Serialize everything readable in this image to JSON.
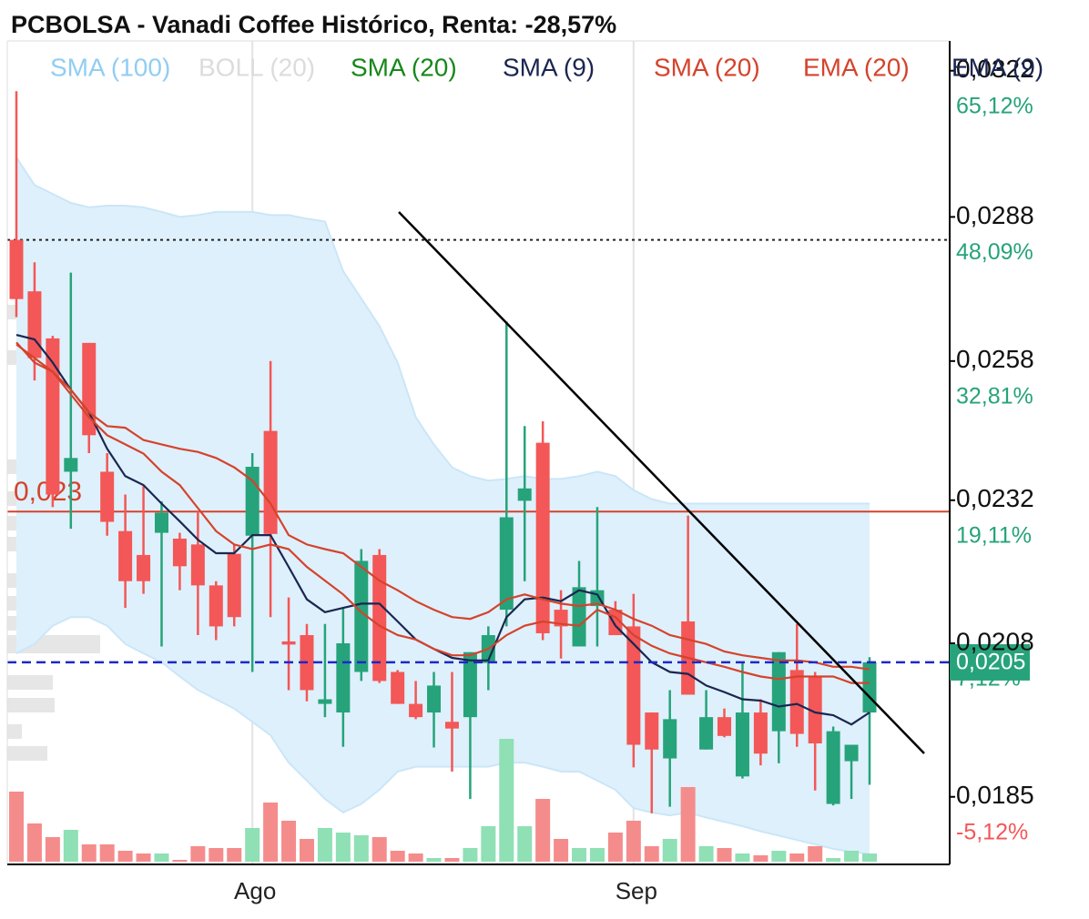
{
  "chart_data": {
    "type": "candlestick",
    "title": "PCBOLSA - Vanadi Coffee Histórico, Renta: -28,57%",
    "log_scale": true,
    "ylim": [
      0.01757,
      0.03294
    ],
    "yticks": [
      {
        "value": 0.0322,
        "label": "0,0322",
        "change": "65,12%"
      },
      {
        "value": 0.0288,
        "label": "0,0288",
        "change": "48,09%"
      },
      {
        "value": 0.0258,
        "label": "0,0258",
        "change": "32,81%"
      },
      {
        "value": 0.0232,
        "label": "0,0232",
        "change": "19,11%"
      },
      {
        "value": 0.0208,
        "label": "0,0208",
        "change": "7,12%"
      },
      {
        "value": 0.0185,
        "label": "0,0185",
        "change": "-5,12%"
      }
    ],
    "categories": [
      null,
      null,
      null,
      null,
      null,
      null,
      null,
      null,
      null,
      null,
      null,
      null,
      null,
      "Ago",
      null,
      null,
      null,
      null,
      null,
      null,
      null,
      null,
      null,
      null,
      null,
      null,
      null,
      null,
      null,
      null,
      null,
      null,
      null,
      null,
      "Sep",
      null,
      null,
      null,
      null,
      null,
      null,
      null,
      null,
      null,
      null,
      null,
      null,
      null
    ],
    "x_grid": true,
    "up_color": "#26a37a",
    "down_color": "#f35757",
    "volume_up_color": "#8fe0b5",
    "volume_down_color": "#f58c8c",
    "open": [
      0.0283,
      0.02721,
      0.02625,
      0.02371,
      0.02616,
      0.02371,
      0.02266,
      0.02225,
      0.02263,
      0.02253,
      0.02243,
      0.02174,
      0.02227,
      0.02258,
      0.02446,
      0.02083,
      0.02093,
      0.01986,
      0.01973,
      0.02035,
      0.02225,
      0.02035,
      0.01986,
      0.01973,
      0.01959,
      0.01966,
      0.02049,
      0.02134,
      0.02319,
      0.02424,
      0.02134,
      0.02075,
      0.0214,
      0.02134,
      0.02107,
      0.01973,
      0.01905,
      0.02115,
      0.01918,
      0.01966,
      0.01879,
      0.01973,
      0.01945,
      0.02038,
      0.02028,
      0.0184,
      0.01901,
      0.01973
    ],
    "high": [
      0.0317,
      0.02782,
      0.0263,
      0.0276,
      0.02616,
      0.02405,
      0.0233,
      0.02345,
      0.02318,
      0.02263,
      0.02302,
      0.02181,
      0.02243,
      0.02405,
      0.0258,
      0.02154,
      0.02111,
      0.02111,
      0.02137,
      0.02235,
      0.02235,
      0.02038,
      0.02021,
      0.02035,
      0.02035,
      0.02066,
      0.02107,
      0.02659,
      0.02455,
      0.02464,
      0.02166,
      0.02215,
      0.02308,
      0.02148,
      0.0216,
      0.01973,
      0.02007,
      0.02293,
      0.02007,
      0.01979,
      0.02049,
      0.01993,
      0.02066,
      0.02111,
      0.02035,
      0.01952,
      0.01925,
      0.02058
    ],
    "low": [
      0.02668,
      0.02542,
      0.02308,
      0.0227,
      0.02405,
      0.02258,
      0.02137,
      0.0216,
      0.02075,
      0.02166,
      0.02093,
      0.02085,
      0.02107,
      0.02035,
      0.02122,
      0.02007,
      0.0199,
      0.01966,
      0.01922,
      0.02021,
      0.02018,
      0.01986,
      0.01963,
      0.01921,
      0.01886,
      0.01847,
      0.02007,
      0.02107,
      0.02181,
      0.02085,
      0.02056,
      0.02075,
      0.02075,
      0.02093,
      0.01892,
      0.01827,
      0.01836,
      0.02,
      0.01918,
      0.01936,
      0.01876,
      0.01895,
      0.01898,
      0.01922,
      0.01859,
      0.01838,
      0.01847,
      0.01867
    ],
    "close": [
      0.02705,
      0.02586,
      0.0233,
      0.02396,
      0.02438,
      0.02282,
      0.02181,
      0.02181,
      0.02298,
      0.02206,
      0.02174,
      0.02107,
      0.02122,
      0.0238,
      0.02261,
      0.02078,
      0.02007,
      0.01993,
      0.0208,
      0.02215,
      0.02021,
      0.01986,
      0.01966,
      0.02014,
      0.01949,
      0.02066,
      0.02093,
      0.0229,
      0.02341,
      0.02096,
      0.02107,
      0.02171,
      0.02166,
      0.02093,
      0.01925,
      0.01918,
      0.01963,
      0.02,
      0.01966,
      0.01938,
      0.01973,
      0.01912,
      0.02066,
      0.01941,
      0.01927,
      0.01945,
      0.01925,
      0.0205
    ],
    "vlim": [
      0,
      905
    ],
    "volume": [
      77,
      42,
      27,
      35,
      19,
      19,
      12,
      9,
      9,
      2,
      17,
      15,
      15,
      37,
      65,
      45,
      25,
      37,
      32,
      29,
      27,
      12,
      9,
      4,
      4,
      15,
      39,
      135,
      39,
      69,
      25,
      15,
      15,
      32,
      45,
      17,
      25,
      82,
      17,
      15,
      9,
      7,
      12,
      9,
      17,
      4,
      12,
      9
    ],
    "legend": [
      {
        "name": "SMA (100)",
        "color": "#92cdf2"
      },
      {
        "name": "BOLL (20)",
        "color": "#dcdcdc"
      },
      {
        "name": "SMA (20)",
        "color": "#17871b"
      },
      {
        "name": "SMA (9)",
        "color": "#1b2651"
      },
      {
        "name": "SMA (20)",
        "color": "#d5432c"
      },
      {
        "name": "EMA (20)",
        "color": "#d5432c"
      },
      {
        "name": "EMA (9)",
        "color": "#1b2651"
      }
    ],
    "band": {
      "legend_item": 1,
      "fill": "#def0fb",
      "line_color": "#cbe6f8",
      "upper": [
        0.03014,
        0.02951,
        0.02931,
        0.02911,
        0.02901,
        0.02905,
        0.02905,
        0.02901,
        0.02891,
        0.0288,
        0.02884,
        0.02891,
        0.02891,
        0.02891,
        0.02884,
        0.02884,
        0.02876,
        0.0287,
        0.02763,
        0.02706,
        0.0265,
        0.02577,
        0.02472,
        0.02421,
        0.02379,
        0.02363,
        0.02355,
        0.02358,
        0.02363,
        0.02358,
        0.02358,
        0.02363,
        0.02371,
        0.02363,
        0.02338,
        0.02322,
        0.02314,
        0.02314,
        0.02314,
        0.02314,
        0.02314,
        0.02314,
        0.02314,
        0.02314,
        0.02314,
        0.02314,
        0.02314,
        0.02314
      ],
      "lower": [
        0.02064,
        0.02079,
        0.02108,
        0.02122,
        0.02122,
        0.02108,
        0.02079,
        0.02064,
        0.0205,
        0.02028,
        0.02007,
        0.01993,
        0.01979,
        0.01959,
        0.01939,
        0.01899,
        0.01873,
        0.01847,
        0.01828,
        0.0184,
        0.0186,
        0.01886,
        0.01893,
        0.01893,
        0.01893,
        0.01893,
        0.01893,
        0.01899,
        0.01899,
        0.01893,
        0.01886,
        0.01886,
        0.01873,
        0.0186,
        0.01834,
        0.01828,
        0.01824,
        0.01828,
        0.01821,
        0.01815,
        0.01809,
        0.01802,
        0.01796,
        0.0179,
        0.01784,
        0.01778,
        0.01774,
        0.01771
      ]
    },
    "overlays": [
      {
        "legend_item": 3,
        "values": [
          0.02632,
          0.02623,
          0.02577,
          0.02524,
          0.02481,
          0.02413,
          0.02363,
          0.02347,
          0.02314,
          0.02283,
          0.02251,
          0.02228,
          0.02228,
          0.02259,
          0.02259,
          0.02205,
          0.02151,
          0.0213,
          0.02137,
          0.02144,
          0.02144,
          0.02115,
          0.02086,
          0.02071,
          0.02057,
          0.02053,
          0.02053,
          0.02122,
          0.02151,
          0.02154,
          0.02148,
          0.02166,
          0.02159,
          0.02108,
          0.02079,
          0.0205,
          0.02035,
          0.02032,
          0.02014,
          0.02004,
          0.01993,
          0.01991,
          0.01982,
          0.01986,
          0.01973,
          0.01969,
          0.01955,
          0.01973
        ]
      },
      {
        "legend_item": 4,
        "values": [
          0.02613,
          0.02586,
          0.02559,
          0.02524,
          0.02481,
          0.02455,
          0.02452,
          0.02429,
          0.02421,
          0.02413,
          0.02407,
          0.02396,
          0.02379,
          0.02355,
          0.02314,
          0.02259,
          0.02243,
          0.02235,
          0.02228,
          0.02205,
          0.02182,
          0.02166,
          0.02148,
          0.02134,
          0.02122,
          0.02119,
          0.0213,
          0.02151,
          0.02159,
          0.02151,
          0.02144,
          0.0214,
          0.02144,
          0.02134,
          0.02119,
          0.02108,
          0.02093,
          0.02086,
          0.02079,
          0.02067,
          0.02061,
          0.02057,
          0.02053,
          0.02053,
          0.0205,
          0.02043,
          0.02043,
          0.02039
        ]
      },
      {
        "legend_item": 5,
        "values": [
          0.02617,
          0.02577,
          0.02559,
          0.02515,
          0.02472,
          0.02438,
          0.02421,
          0.02404,
          0.02371,
          0.02347,
          0.02306,
          0.02266,
          0.02243,
          0.02235,
          0.02243,
          0.02235,
          0.02205,
          0.02182,
          0.02159,
          0.0213,
          0.02108,
          0.02093,
          0.02086,
          0.02071,
          0.02061,
          0.02061,
          0.02071,
          0.02093,
          0.02108,
          0.02115,
          0.02111,
          0.02108,
          0.02134,
          0.02122,
          0.02093,
          0.02076,
          0.02064,
          0.02057,
          0.0205,
          0.02043,
          0.02035,
          0.02028,
          0.02024,
          0.02028,
          0.02028,
          0.02028,
          0.02018,
          0.02018
        ]
      }
    ],
    "dotted_level": 0.0283,
    "level": {
      "value": 0.023,
      "label": "0,023",
      "color": "#d5432c"
    },
    "last_price": {
      "value": 0.0205,
      "label": "0,0205",
      "color": "#1f28c8",
      "box_color": "#26a37a"
    }
  }
}
